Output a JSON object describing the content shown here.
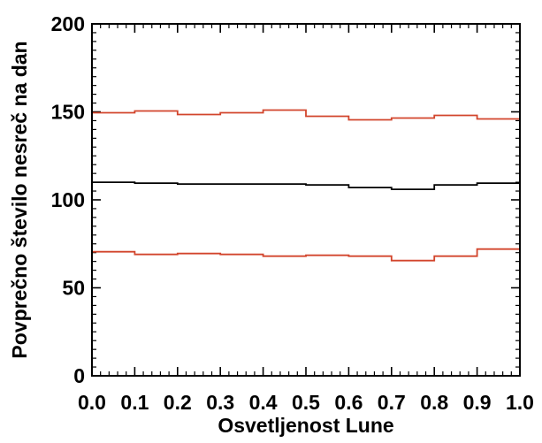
{
  "chart_data": {
    "type": "line",
    "title": "",
    "xlabel": "Osvetljenost Lune",
    "ylabel": "Povprečno število nesreč na dan",
    "xlim": [
      0,
      1
    ],
    "ylim": [
      0,
      200
    ],
    "x_ticks": [
      "0.0",
      "0.1",
      "0.2",
      "0.3",
      "0.4",
      "0.5",
      "0.6",
      "0.7",
      "0.8",
      "0.9",
      "1.0"
    ],
    "y_ticks": [
      "0",
      "50",
      "100",
      "150",
      "200"
    ],
    "bin_edges": [
      0.0,
      0.1,
      0.2,
      0.3,
      0.4,
      0.5,
      0.6,
      0.7,
      0.8,
      0.9,
      1.0
    ],
    "grid": false,
    "series": [
      {
        "color": "#d2452c",
        "style": "step",
        "values": [
          149.5,
          150.5,
          148.5,
          149.5,
          151,
          147.5,
          145.5,
          146.5,
          148,
          146
        ]
      },
      {
        "color": "#000000",
        "style": "step",
        "values": [
          110,
          109.5,
          109,
          109,
          109,
          108.5,
          107,
          106,
          108.5,
          109.5
        ]
      },
      {
        "color": "#d2452c",
        "style": "step",
        "values": [
          70.5,
          69,
          69.5,
          69,
          68,
          68.5,
          68,
          65.5,
          68,
          72
        ]
      }
    ]
  }
}
